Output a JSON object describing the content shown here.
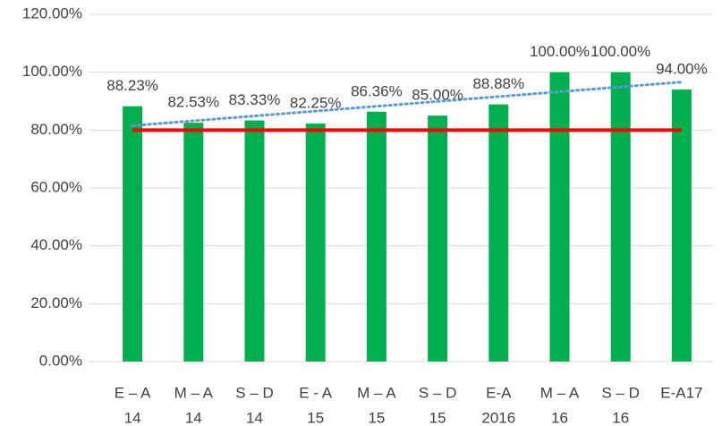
{
  "chart_data": {
    "type": "bar",
    "categories": [
      [
        "E – A",
        "14"
      ],
      [
        "M – A",
        "14"
      ],
      [
        "S – D",
        "14"
      ],
      [
        "E - A",
        "15"
      ],
      [
        "M – A",
        "15"
      ],
      [
        "S – D",
        "15"
      ],
      [
        "E-A",
        "2016"
      ],
      [
        "M – A",
        "16"
      ],
      [
        "S – D",
        "16"
      ],
      [
        "E-A17"
      ]
    ],
    "values": [
      88.23,
      82.53,
      83.33,
      82.25,
      86.36,
      85,
      88.88,
      100,
      100,
      94
    ],
    "value_labels": [
      "88.23%",
      "82.53%",
      "83.33%",
      "82.25%",
      "86.36%",
      "85.00%",
      "88.88%",
      "100.00%",
      "100.00%",
      "94.00%"
    ],
    "color": "#00b050",
    "target": 80,
    "target_color": "#ff0000",
    "trendline": "linear",
    "trendline_color": "#5b9bd5",
    "ylim": [
      0,
      120
    ],
    "yticks": [
      {
        "value": 0,
        "label": "0.00%"
      },
      {
        "value": 20,
        "label": "20.00%"
      },
      {
        "value": 40,
        "label": "40.00%"
      },
      {
        "value": 60,
        "label": "60.00%"
      },
      {
        "value": 80,
        "label": "80.00%"
      },
      {
        "value": 100,
        "label": "100.00%"
      },
      {
        "value": 120,
        "label": "120.00%"
      }
    ],
    "grid": true
  }
}
